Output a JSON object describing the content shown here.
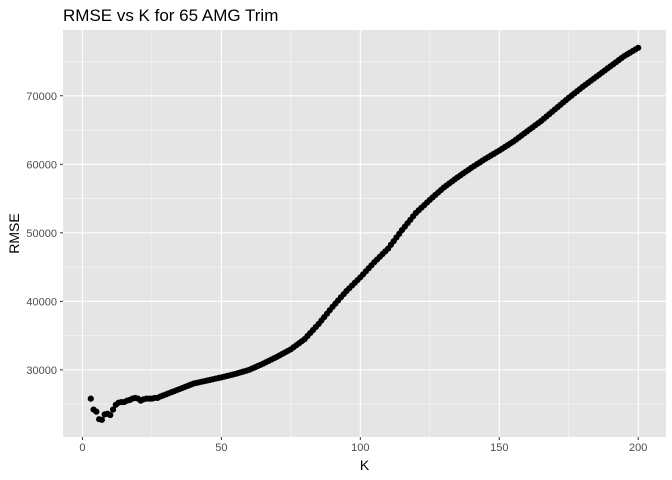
{
  "chart_data": {
    "type": "scatter",
    "title": "RMSE vs K for 65 AMG Trim",
    "xlabel": "K",
    "ylabel": "RMSE",
    "xlim": [
      -7,
      210
    ],
    "ylim": [
      20200,
      79600
    ],
    "x_ticks": [
      0,
      50,
      100,
      150,
      200
    ],
    "y_ticks": [
      30000,
      40000,
      50000,
      60000,
      70000
    ],
    "grid": true,
    "legend": "none",
    "colors": {
      "panel": "#e5e5e5",
      "grid_major": "#ffffff",
      "point": "#000000"
    },
    "k_range": [
      3,
      200
    ],
    "early_points": [
      [
        3,
        25800
      ],
      [
        4,
        24200
      ],
      [
        5,
        23900
      ],
      [
        6,
        22800
      ],
      [
        7,
        22700
      ],
      [
        8,
        23500
      ],
      [
        9,
        23600
      ],
      [
        10,
        23400
      ],
      [
        11,
        24200
      ],
      [
        12,
        24900
      ],
      [
        13,
        25200
      ],
      [
        14,
        25300
      ],
      [
        15,
        25300
      ],
      [
        16,
        25500
      ],
      [
        17,
        25600
      ],
      [
        18,
        25800
      ],
      [
        19,
        25900
      ],
      [
        20,
        25800
      ],
      [
        21,
        25500
      ],
      [
        22,
        25700
      ],
      [
        23,
        25800
      ],
      [
        24,
        25800
      ],
      [
        25,
        25800
      ],
      [
        26,
        25900
      ],
      [
        27,
        25900
      ],
      [
        28,
        26100
      ]
    ],
    "trend_anchors": [
      [
        28,
        26100
      ],
      [
        35,
        27200
      ],
      [
        40,
        28000
      ],
      [
        50,
        28900
      ],
      [
        55,
        29400
      ],
      [
        60,
        30000
      ],
      [
        65,
        30900
      ],
      [
        70,
        31900
      ],
      [
        75,
        33000
      ],
      [
        80,
        34500
      ],
      [
        85,
        36700
      ],
      [
        90,
        39200
      ],
      [
        95,
        41500
      ],
      [
        100,
        43500
      ],
      [
        105,
        45700
      ],
      [
        110,
        47700
      ],
      [
        115,
        50400
      ],
      [
        120,
        52900
      ],
      [
        125,
        54800
      ],
      [
        130,
        56600
      ],
      [
        135,
        58100
      ],
      [
        140,
        59500
      ],
      [
        145,
        60800
      ],
      [
        150,
        62000
      ],
      [
        155,
        63300
      ],
      [
        160,
        64800
      ],
      [
        165,
        66300
      ],
      [
        170,
        68000
      ],
      [
        175,
        69700
      ],
      [
        180,
        71300
      ],
      [
        185,
        72800
      ],
      [
        190,
        74300
      ],
      [
        195,
        75800
      ],
      [
        200,
        77000
      ]
    ]
  }
}
